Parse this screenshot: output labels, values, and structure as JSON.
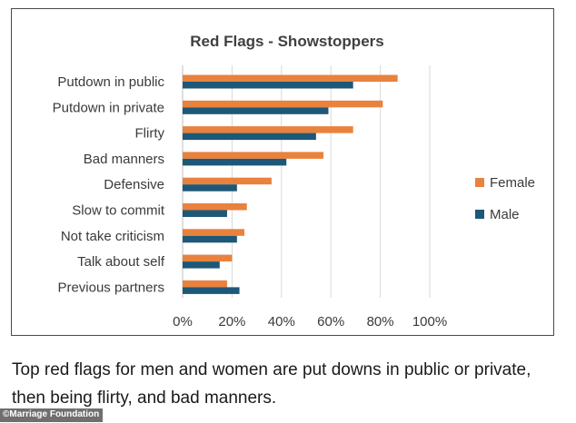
{
  "chart_data": {
    "type": "bar",
    "orientation": "horizontal",
    "title": "Red Flags - Showstoppers",
    "categories": [
      "Putdown in public",
      "Putdown in private",
      "Flirty",
      "Bad manners",
      "Defensive",
      "Slow to commit",
      "Not take criticism",
      "Talk about self",
      "Previous partners"
    ],
    "series": [
      {
        "name": "Female",
        "color": "#e8823d",
        "values": [
          87,
          81,
          69,
          57,
          36,
          26,
          25,
          20,
          18
        ]
      },
      {
        "name": "Male",
        "color": "#1e5878",
        "values": [
          69,
          59,
          54,
          42,
          22,
          18,
          22,
          15,
          23
        ]
      }
    ],
    "xlim": [
      0,
      100
    ],
    "xticks": [
      "0%",
      "20%",
      "40%",
      "60%",
      "80%",
      "100%"
    ],
    "xtick_values": [
      0,
      20,
      40,
      60,
      80,
      100
    ],
    "grid": true,
    "legend": "right",
    "xlabel": "",
    "ylabel": ""
  },
  "caption": "Top red flags for men and women are put downs in public or private, then being flirty, and bad manners.",
  "credit": "©Marriage Foundation"
}
